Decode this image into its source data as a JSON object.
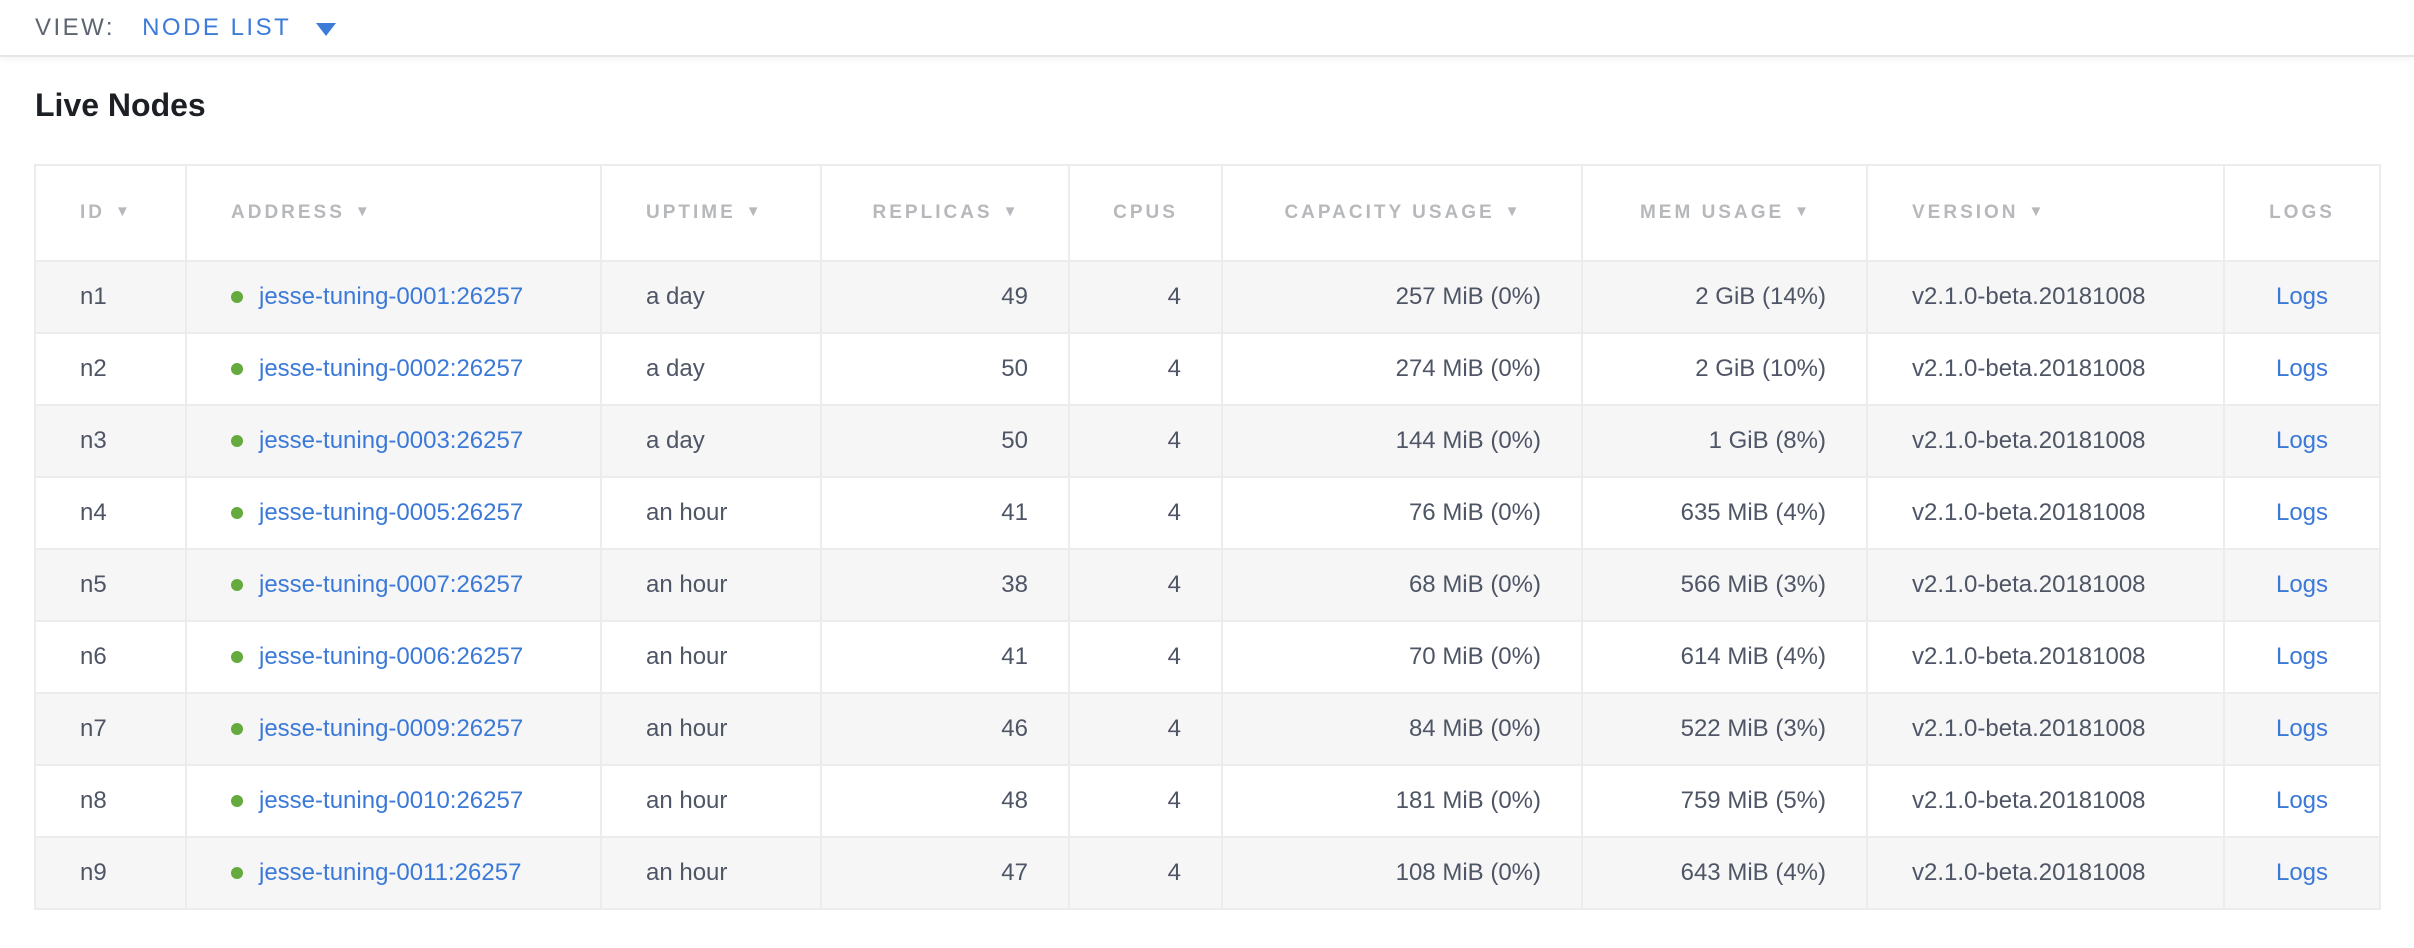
{
  "view_bar": {
    "label": "VIEW:",
    "selected": "NODE LIST",
    "caret_icon": "caret-down"
  },
  "section": {
    "title": "Live Nodes"
  },
  "colors": {
    "accent_blue": "#3d7bd8",
    "link_blue": "#3b79d8",
    "live_green": "#64aa3c",
    "header_gray": "#b6b8bb",
    "body_text": "#4e5565",
    "row_stripe": "#f6f6f7",
    "border": "#ececec"
  },
  "table": {
    "sort_icon": "▼",
    "logs_label": "Logs",
    "columns": [
      {
        "id": "id",
        "label": "ID",
        "sortable": true
      },
      {
        "id": "address",
        "label": "ADDRESS",
        "sortable": true
      },
      {
        "id": "uptime",
        "label": "UPTIME",
        "sortable": true
      },
      {
        "id": "replicas",
        "label": "REPLICAS",
        "sortable": true
      },
      {
        "id": "cpus",
        "label": "CPUS",
        "sortable": false
      },
      {
        "id": "capacity",
        "label": "CAPACITY USAGE",
        "sortable": true
      },
      {
        "id": "mem",
        "label": "MEM USAGE",
        "sortable": true
      },
      {
        "id": "version",
        "label": "VERSION",
        "sortable": true
      },
      {
        "id": "logs",
        "label": "LOGS",
        "sortable": false
      }
    ],
    "rows": [
      {
        "id": "n1",
        "status": "live",
        "address": "jesse-tuning-0001:26257",
        "uptime": "a day",
        "replicas": "49",
        "cpus": "4",
        "capacity": "257 MiB (0%)",
        "mem": "2 GiB (14%)",
        "version": "v2.1.0-beta.20181008"
      },
      {
        "id": "n2",
        "status": "live",
        "address": "jesse-tuning-0002:26257",
        "uptime": "a day",
        "replicas": "50",
        "cpus": "4",
        "capacity": "274 MiB (0%)",
        "mem": "2 GiB (10%)",
        "version": "v2.1.0-beta.20181008"
      },
      {
        "id": "n3",
        "status": "live",
        "address": "jesse-tuning-0003:26257",
        "uptime": "a day",
        "replicas": "50",
        "cpus": "4",
        "capacity": "144 MiB (0%)",
        "mem": "1 GiB (8%)",
        "version": "v2.1.0-beta.20181008"
      },
      {
        "id": "n4",
        "status": "live",
        "address": "jesse-tuning-0005:26257",
        "uptime": "an hour",
        "replicas": "41",
        "cpus": "4",
        "capacity": "76 MiB (0%)",
        "mem": "635 MiB (4%)",
        "version": "v2.1.0-beta.20181008"
      },
      {
        "id": "n5",
        "status": "live",
        "address": "jesse-tuning-0007:26257",
        "uptime": "an hour",
        "replicas": "38",
        "cpus": "4",
        "capacity": "68 MiB (0%)",
        "mem": "566 MiB (3%)",
        "version": "v2.1.0-beta.20181008"
      },
      {
        "id": "n6",
        "status": "live",
        "address": "jesse-tuning-0006:26257",
        "uptime": "an hour",
        "replicas": "41",
        "cpus": "4",
        "capacity": "70 MiB (0%)",
        "mem": "614 MiB (4%)",
        "version": "v2.1.0-beta.20181008"
      },
      {
        "id": "n7",
        "status": "live",
        "address": "jesse-tuning-0009:26257",
        "uptime": "an hour",
        "replicas": "46",
        "cpus": "4",
        "capacity": "84 MiB (0%)",
        "mem": "522 MiB (3%)",
        "version": "v2.1.0-beta.20181008"
      },
      {
        "id": "n8",
        "status": "live",
        "address": "jesse-tuning-0010:26257",
        "uptime": "an hour",
        "replicas": "48",
        "cpus": "4",
        "capacity": "181 MiB (0%)",
        "mem": "759 MiB (5%)",
        "version": "v2.1.0-beta.20181008"
      },
      {
        "id": "n9",
        "status": "live",
        "address": "jesse-tuning-0011:26257",
        "uptime": "an hour",
        "replicas": "47",
        "cpus": "4",
        "capacity": "108 MiB (0%)",
        "mem": "643 MiB (4%)",
        "version": "v2.1.0-beta.20181008"
      }
    ]
  }
}
